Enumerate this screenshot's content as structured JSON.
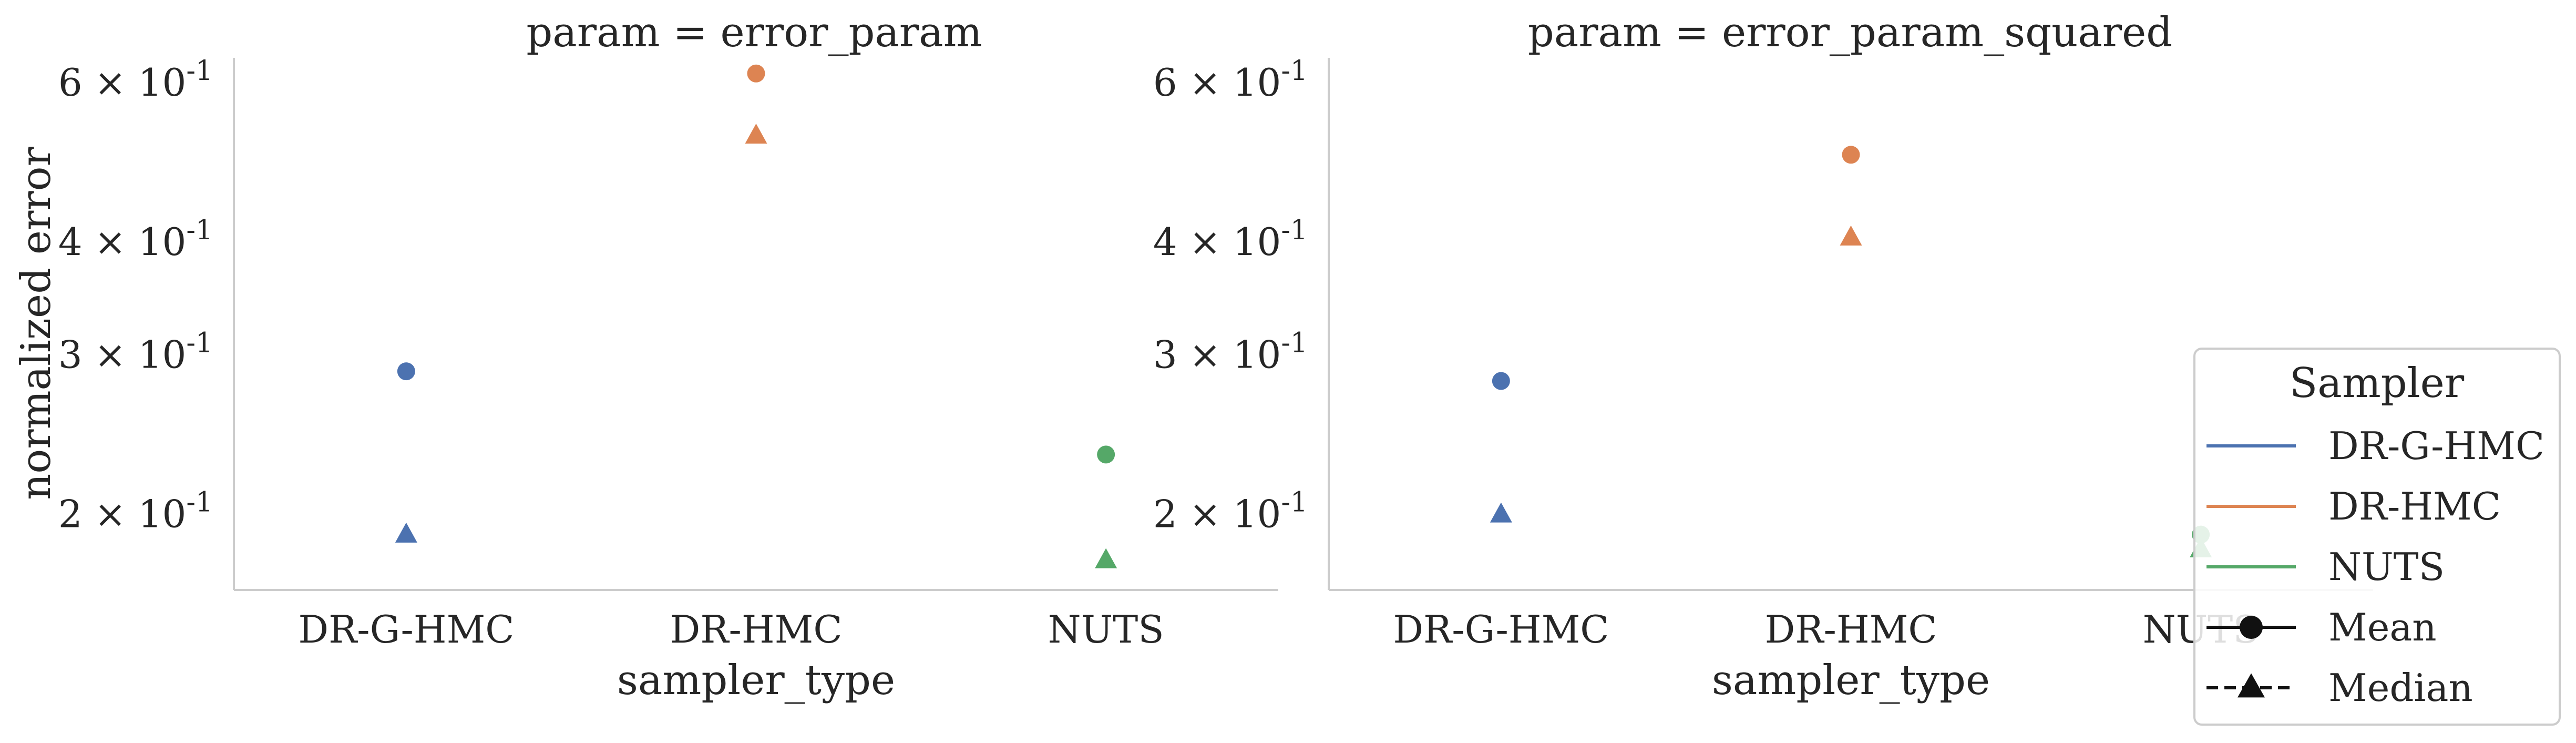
{
  "colors": {
    "DR-G-HMC": "#4c72b0",
    "DR-HMC": "#dd8452",
    "NUTS": "#55a868",
    "spine": "#cccccc",
    "text": "#262626"
  },
  "chart_data": {
    "type": "scatter",
    "y_scale": "log",
    "ylabel": "normalized error",
    "xlabel": "sampler_type",
    "categories": [
      "DR-G-HMC",
      "DR-HMC",
      "NUTS"
    ],
    "ylim": [
      0.165,
      0.64
    ],
    "yticks": [
      {
        "value": 0.2,
        "label": "2 × 10^-1"
      },
      {
        "value": 0.3,
        "label": "3 × 10^-1"
      },
      {
        "value": 0.4,
        "label": "4 × 10^-1"
      },
      {
        "value": 0.6,
        "label": "6 × 10^-1"
      }
    ],
    "grid": false,
    "legend": {
      "title": "Sampler",
      "placement": "right",
      "entries": [
        {
          "label": "DR-G-HMC",
          "kind": "line",
          "color": "#4c72b0"
        },
        {
          "label": "DR-HMC",
          "kind": "line",
          "color": "#dd8452"
        },
        {
          "label": "NUTS",
          "kind": "line",
          "color": "#55a868"
        },
        {
          "label": "Mean",
          "kind": "marker",
          "marker": "circle",
          "dash": "solid"
        },
        {
          "label": "Median",
          "kind": "marker",
          "marker": "triangle",
          "dash": "dashed"
        }
      ]
    },
    "panels": [
      {
        "title": "param = error_param",
        "series": [
          {
            "name": "Mean",
            "marker": "circle",
            "values": [
              0.288,
              0.615,
              0.233
            ]
          },
          {
            "name": "Median",
            "marker": "triangle",
            "values": [
              0.19,
              0.525,
              0.178
            ]
          }
        ]
      },
      {
        "title": "param = error_param_squared",
        "series": [
          {
            "name": "Mean",
            "marker": "circle",
            "values": [
              0.281,
              0.5,
              0.19
            ]
          },
          {
            "name": "Median",
            "marker": "triangle",
            "values": [
              0.2,
              0.405,
              0.183
            ]
          }
        ]
      }
    ]
  }
}
